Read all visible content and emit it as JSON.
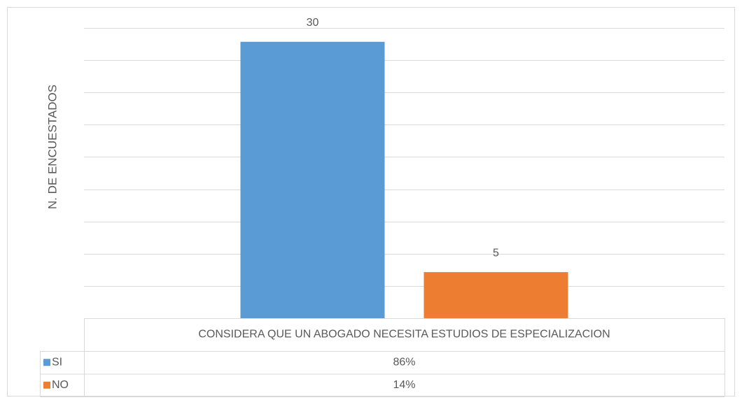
{
  "chart_data": {
    "type": "bar",
    "y_label": "N. DE ENCUESTADOS",
    "categories": [
      "CONSIDERA QUE UN ABOGADO NECESITA ESTUDIOS DE ESPECIALIZACION"
    ],
    "series": [
      {
        "name": "SI",
        "color": "#5b9bd5",
        "values": [
          30
        ],
        "shares": [
          86
        ],
        "share_labels": [
          "86%"
        ]
      },
      {
        "name": "NO",
        "color": "#ed7d31",
        "values": [
          5
        ],
        "shares": [
          14
        ],
        "share_labels": [
          "14%"
        ]
      }
    ],
    "ylim": [
      0,
      31.5
    ],
    "yticks": [
      0,
      3.5,
      7,
      10.5,
      14,
      17.5,
      21,
      24.5,
      28,
      31.5
    ],
    "grid": true
  }
}
